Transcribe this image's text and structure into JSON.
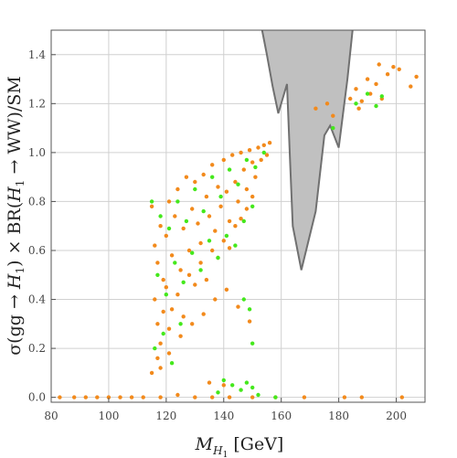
{
  "chart_data": {
    "type": "scatter",
    "title": "",
    "xlabel": "M_H1 [GeV]",
    "xlabel_parts": {
      "main": "M",
      "sub": "H",
      "subsub": "1",
      "unit": " [GeV]"
    },
    "ylabel": "σ(gg → H1) × BR(H1 → WW)/SM",
    "ylabel_parts": {
      "a": "σ(gg → ",
      "b": "H",
      "c": "1",
      "d": ") × BR(",
      "e": "H",
      "f": "1",
      "g": " → WW)/SM"
    },
    "xlim": [
      80,
      210
    ],
    "ylim": [
      -0.02,
      1.5
    ],
    "xticks": [
      80,
      100,
      120,
      140,
      160,
      180,
      200
    ],
    "yticks": [
      0.0,
      0.2,
      0.4,
      0.6,
      0.8,
      1.0,
      1.2,
      1.4
    ],
    "ytick_labels": [
      "0.0",
      "0.2",
      "0.4",
      "0.6",
      "0.8",
      "1.0",
      "1.2",
      "1.4"
    ],
    "grid": true,
    "colors": {
      "orange": "#f28a1c",
      "green": "#44e81c",
      "exclusion_fill": "#c0c0c0",
      "exclusion_edge": "#707070"
    },
    "exclusion_region": [
      [
        153,
        1.52
      ],
      [
        155,
        1.4
      ],
      [
        157,
        1.27
      ],
      [
        159,
        1.16
      ],
      [
        162,
        1.28
      ],
      [
        163,
        0.99
      ],
      [
        164,
        0.7
      ],
      [
        167,
        0.52
      ],
      [
        172,
        0.76
      ],
      [
        175,
        1.07
      ],
      [
        177,
        1.11
      ],
      [
        180,
        1.02
      ],
      [
        183,
        1.3
      ],
      [
        185,
        1.52
      ]
    ],
    "series": [
      {
        "color_key": "orange",
        "points": [
          [
            83,
            0.0
          ],
          [
            88,
            0.0
          ],
          [
            92,
            0.0
          ],
          [
            96,
            0.0
          ],
          [
            100,
            0.0
          ],
          [
            104,
            0.0
          ],
          [
            108,
            0.0
          ],
          [
            112,
            0.0
          ],
          [
            118,
            0.0
          ],
          [
            124,
            0.01
          ],
          [
            130,
            0.0
          ],
          [
            136,
            0.0
          ],
          [
            142,
            0.0
          ],
          [
            150,
            0.0
          ],
          [
            158,
            0.0
          ],
          [
            168,
            0.0
          ],
          [
            182,
            0.0
          ],
          [
            188,
            0.0
          ],
          [
            202,
            0.0
          ],
          [
            115,
            0.78
          ],
          [
            116,
            0.62
          ],
          [
            117,
            0.55
          ],
          [
            118,
            0.7
          ],
          [
            119,
            0.48
          ],
          [
            120,
            0.66
          ],
          [
            121,
            0.8
          ],
          [
            122,
            0.58
          ],
          [
            123,
            0.74
          ],
          [
            124,
            0.85
          ],
          [
            125,
            0.52
          ],
          [
            126,
            0.69
          ],
          [
            127,
            0.9
          ],
          [
            128,
            0.6
          ],
          [
            129,
            0.77
          ],
          [
            130,
            0.88
          ],
          [
            131,
            0.71
          ],
          [
            132,
            0.63
          ],
          [
            133,
            0.91
          ],
          [
            134,
            0.82
          ],
          [
            135,
            0.74
          ],
          [
            136,
            0.95
          ],
          [
            137,
            0.68
          ],
          [
            138,
            0.86
          ],
          [
            139,
            0.78
          ],
          [
            140,
            0.97
          ],
          [
            141,
            0.84
          ],
          [
            142,
            0.72
          ],
          [
            143,
            0.99
          ],
          [
            144,
            0.88
          ],
          [
            145,
            0.8
          ],
          [
            146,
            1.0
          ],
          [
            147,
            0.93
          ],
          [
            148,
            0.85
          ],
          [
            149,
            1.01
          ],
          [
            150,
            0.96
          ],
          [
            151,
            0.9
          ],
          [
            152,
            1.02
          ],
          [
            153,
            0.97
          ],
          [
            154,
            1.03
          ],
          [
            155,
            0.99
          ],
          [
            156,
            1.04
          ],
          [
            116,
            0.4
          ],
          [
            117,
            0.3
          ],
          [
            118,
            0.22
          ],
          [
            119,
            0.35
          ],
          [
            120,
            0.45
          ],
          [
            121,
            0.28
          ],
          [
            115,
            0.1
          ],
          [
            117,
            0.16
          ],
          [
            122,
            0.36
          ],
          [
            124,
            0.42
          ],
          [
            126,
            0.33
          ],
          [
            128,
            0.5
          ],
          [
            130,
            0.46
          ],
          [
            132,
            0.55
          ],
          [
            134,
            0.48
          ],
          [
            136,
            0.6
          ],
          [
            138,
            0.57
          ],
          [
            140,
            0.64
          ],
          [
            142,
            0.61
          ],
          [
            144,
            0.7
          ],
          [
            146,
            0.73
          ],
          [
            148,
            0.77
          ],
          [
            150,
            0.82
          ],
          [
            118,
            0.12
          ],
          [
            121,
            0.18
          ],
          [
            125,
            0.25
          ],
          [
            129,
            0.3
          ],
          [
            133,
            0.34
          ],
          [
            137,
            0.4
          ],
          [
            141,
            0.44
          ],
          [
            145,
            0.37
          ],
          [
            149,
            0.31
          ],
          [
            135,
            0.06
          ],
          [
            140,
            0.05
          ],
          [
            172,
            1.18
          ],
          [
            176,
            1.2
          ],
          [
            178,
            1.15
          ],
          [
            184,
            1.22
          ],
          [
            186,
            1.26
          ],
          [
            188,
            1.21
          ],
          [
            190,
            1.3
          ],
          [
            191,
            1.24
          ],
          [
            193,
            1.28
          ],
          [
            195,
            1.22
          ],
          [
            197,
            1.32
          ],
          [
            199,
            1.35
          ],
          [
            201,
            1.34
          ],
          [
            205,
            1.27
          ],
          [
            207,
            1.31
          ],
          [
            187,
            1.18
          ],
          [
            194,
            1.36
          ]
        ]
      },
      {
        "color_key": "green",
        "points": [
          [
            115,
            0.8
          ],
          [
            118,
            0.74
          ],
          [
            121,
            0.69
          ],
          [
            124,
            0.8
          ],
          [
            127,
            0.72
          ],
          [
            130,
            0.85
          ],
          [
            133,
            0.76
          ],
          [
            136,
            0.9
          ],
          [
            139,
            0.82
          ],
          [
            142,
            0.93
          ],
          [
            145,
            0.87
          ],
          [
            148,
            0.97
          ],
          [
            151,
            0.94
          ],
          [
            154,
            1.0
          ],
          [
            117,
            0.5
          ],
          [
            120,
            0.42
          ],
          [
            123,
            0.55
          ],
          [
            126,
            0.47
          ],
          [
            129,
            0.59
          ],
          [
            132,
            0.52
          ],
          [
            135,
            0.64
          ],
          [
            138,
            0.57
          ],
          [
            141,
            0.66
          ],
          [
            144,
            0.62
          ],
          [
            147,
            0.72
          ],
          [
            150,
            0.78
          ],
          [
            116,
            0.2
          ],
          [
            119,
            0.26
          ],
          [
            122,
            0.14
          ],
          [
            125,
            0.3
          ],
          [
            140,
            0.07
          ],
          [
            143,
            0.05
          ],
          [
            146,
            0.03
          ],
          [
            148,
            0.06
          ],
          [
            150,
            0.04
          ],
          [
            138,
            0.02
          ],
          [
            152,
            0.01
          ],
          [
            147,
            0.4
          ],
          [
            149,
            0.36
          ],
          [
            150,
            0.22
          ],
          [
            158,
            0.0
          ],
          [
            186,
            1.2
          ],
          [
            190,
            1.24
          ],
          [
            195,
            1.23
          ],
          [
            193,
            1.19
          ],
          [
            178,
            1.1
          ]
        ]
      }
    ]
  }
}
